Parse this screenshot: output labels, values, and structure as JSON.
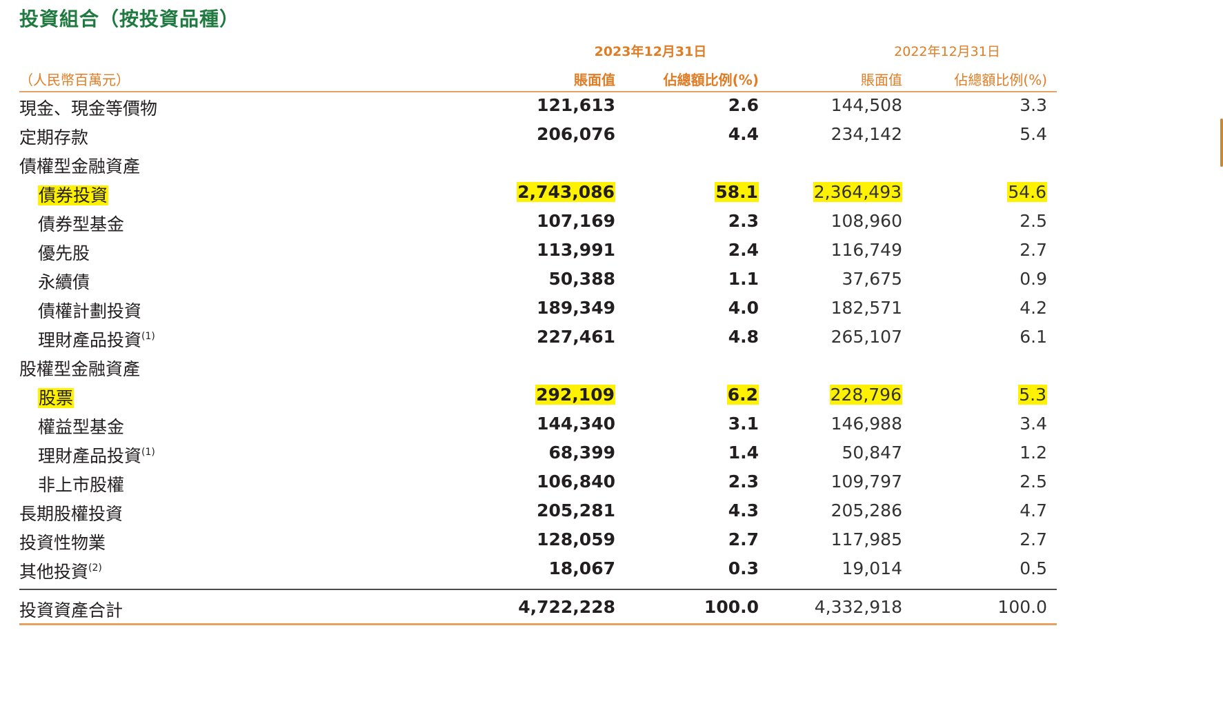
{
  "title": "投資組合（按投資品種）",
  "years": {
    "current": "2023年12月31日",
    "previous": "2022年12月31日"
  },
  "header": {
    "unit": "（人民幣百萬元）",
    "book_value": "賬面值",
    "ratio": "佔總額比例(%)",
    "book_value_prev": "賬面值",
    "ratio_prev": "佔總額比例(%)"
  },
  "rows": [
    {
      "label": "現金、現金等價物",
      "sup": "",
      "indent": false,
      "highlight": false,
      "v1": "121,613",
      "v2": "2.6",
      "v3": "144,508",
      "v4": "3.3"
    },
    {
      "label": "定期存款",
      "sup": "",
      "indent": false,
      "highlight": false,
      "v1": "206,076",
      "v2": "4.4",
      "v3": "234,142",
      "v4": "5.4"
    },
    {
      "label": "債權型金融資產",
      "sup": "",
      "indent": false,
      "highlight": false,
      "v1": "",
      "v2": "",
      "v3": "",
      "v4": ""
    },
    {
      "label": "債券投資",
      "sup": "",
      "indent": true,
      "highlight": true,
      "v1": "2,743,086",
      "v2": "58.1",
      "v3": "2,364,493",
      "v4": "54.6"
    },
    {
      "label": "債券型基金",
      "sup": "",
      "indent": true,
      "highlight": false,
      "v1": "107,169",
      "v2": "2.3",
      "v3": "108,960",
      "v4": "2.5"
    },
    {
      "label": "優先股",
      "sup": "",
      "indent": true,
      "highlight": false,
      "v1": "113,991",
      "v2": "2.4",
      "v3": "116,749",
      "v4": "2.7"
    },
    {
      "label": "永續債",
      "sup": "",
      "indent": true,
      "highlight": false,
      "v1": "50,388",
      "v2": "1.1",
      "v3": "37,675",
      "v4": "0.9"
    },
    {
      "label": "債權計劃投資",
      "sup": "",
      "indent": true,
      "highlight": false,
      "v1": "189,349",
      "v2": "4.0",
      "v3": "182,571",
      "v4": "4.2"
    },
    {
      "label": "理財產品投資",
      "sup": "(1)",
      "indent": true,
      "highlight": false,
      "v1": "227,461",
      "v2": "4.8",
      "v3": "265,107",
      "v4": "6.1"
    },
    {
      "label": "股權型金融資產",
      "sup": "",
      "indent": false,
      "highlight": false,
      "v1": "",
      "v2": "",
      "v3": "",
      "v4": ""
    },
    {
      "label": "股票",
      "sup": "",
      "indent": true,
      "highlight": true,
      "v1": "292,109",
      "v2": "6.2",
      "v3": "228,796",
      "v4": "5.3"
    },
    {
      "label": "權益型基金",
      "sup": "",
      "indent": true,
      "highlight": false,
      "v1": "144,340",
      "v2": "3.1",
      "v3": "146,988",
      "v4": "3.4"
    },
    {
      "label": "理財產品投資",
      "sup": "(1)",
      "indent": true,
      "highlight": false,
      "v1": "68,399",
      "v2": "1.4",
      "v3": "50,847",
      "v4": "1.2"
    },
    {
      "label": "非上市股權",
      "sup": "",
      "indent": true,
      "highlight": false,
      "v1": "106,840",
      "v2": "2.3",
      "v3": "109,797",
      "v4": "2.5"
    },
    {
      "label": "長期股權投資",
      "sup": "",
      "indent": false,
      "highlight": false,
      "v1": "205,281",
      "v2": "4.3",
      "v3": "205,286",
      "v4": "4.7"
    },
    {
      "label": "投資性物業",
      "sup": "",
      "indent": false,
      "highlight": false,
      "v1": "128,059",
      "v2": "2.7",
      "v3": "117,985",
      "v4": "2.7"
    },
    {
      "label": "其他投資",
      "sup": "(2)",
      "indent": false,
      "highlight": false,
      "v1": "18,067",
      "v2": "0.3",
      "v3": "19,014",
      "v4": "0.5"
    }
  ],
  "total": {
    "label": "投資資產合計",
    "v1": "4,722,228",
    "v2": "100.0",
    "v3": "4,332,918",
    "v4": "100.0"
  },
  "colors": {
    "title": "#1f7a3f",
    "accent": "#e07c24",
    "highlight": "#fff200"
  }
}
